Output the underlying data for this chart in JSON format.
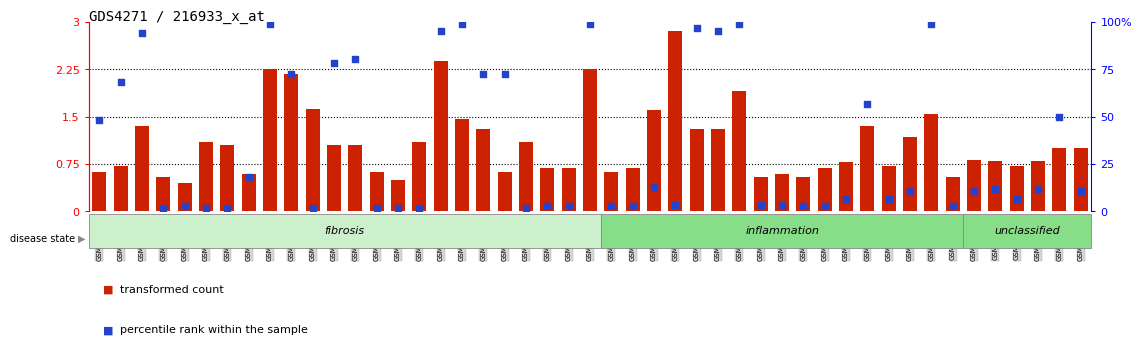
{
  "title": "GDS4271 / 216933_x_at",
  "samples": [
    "GSM380382",
    "GSM380383",
    "GSM380384",
    "GSM380385",
    "GSM380386",
    "GSM380387",
    "GSM380388",
    "GSM380389",
    "GSM380390",
    "GSM380391",
    "GSM380392",
    "GSM380393",
    "GSM380394",
    "GSM380395",
    "GSM380396",
    "GSM380397",
    "GSM380398",
    "GSM380399",
    "GSM380400",
    "GSM380401",
    "GSM380402",
    "GSM380403",
    "GSM380404",
    "GSM380405",
    "GSM380406",
    "GSM380407",
    "GSM380408",
    "GSM380409",
    "GSM380410",
    "GSM380411",
    "GSM380412",
    "GSM380413",
    "GSM380414",
    "GSM380415",
    "GSM380416",
    "GSM380417",
    "GSM380418",
    "GSM380419",
    "GSM380420",
    "GSM380421",
    "GSM380422",
    "GSM380423",
    "GSM380424",
    "GSM380425",
    "GSM380426",
    "GSM380427",
    "GSM380428"
  ],
  "bar_values": [
    0.62,
    0.72,
    1.35,
    0.55,
    0.45,
    1.1,
    1.05,
    0.6,
    2.25,
    2.18,
    1.62,
    1.05,
    1.05,
    0.62,
    0.5,
    1.1,
    2.38,
    1.47,
    1.3,
    0.62,
    1.1,
    0.68,
    0.68,
    2.25,
    0.62,
    0.68,
    1.6,
    2.85,
    1.3,
    1.3,
    1.9,
    0.55,
    0.6,
    0.55,
    0.68,
    0.78,
    1.35,
    0.72,
    1.18,
    1.55,
    0.55,
    0.82,
    0.8,
    0.72,
    0.8,
    1.0,
    1.0
  ],
  "dot_values": [
    1.45,
    2.05,
    2.83,
    0.05,
    0.08,
    0.05,
    0.05,
    0.55,
    2.97,
    2.18,
    0.05,
    2.35,
    2.42,
    0.05,
    0.05,
    0.05,
    2.85,
    2.97,
    2.18,
    2.18,
    0.05,
    0.08,
    0.08,
    2.97,
    0.08,
    0.08,
    0.38,
    0.1,
    2.9,
    2.86,
    2.97,
    0.1,
    0.1,
    0.08,
    0.08,
    0.2,
    1.7,
    0.2,
    0.32,
    2.97,
    0.08,
    0.32,
    0.35,
    0.2,
    0.35,
    1.5,
    0.32
  ],
  "disease_groups": [
    {
      "label": "fibrosis",
      "start": 0,
      "end": 24,
      "color": "#ccf0cc"
    },
    {
      "label": "inflammation",
      "start": 24,
      "end": 41,
      "color": "#88dd88"
    },
    {
      "label": "unclassified",
      "start": 41,
      "end": 47,
      "color": "#88dd88"
    }
  ],
  "bar_color": "#cc2200",
  "dot_color": "#2244cc",
  "ylim_left": [
    0,
    3.0
  ],
  "yticks_left": [
    0,
    0.75,
    1.5,
    2.25,
    3.0
  ],
  "ytick_labels_left": [
    "0",
    "0.75",
    "1.5",
    "2.25",
    "3"
  ],
  "yticks_right": [
    0,
    25,
    50,
    75,
    100
  ],
  "ytick_labels_right": [
    "0",
    "25",
    "50",
    "75",
    "100%"
  ],
  "hlines": [
    0.75,
    1.5,
    2.25
  ]
}
